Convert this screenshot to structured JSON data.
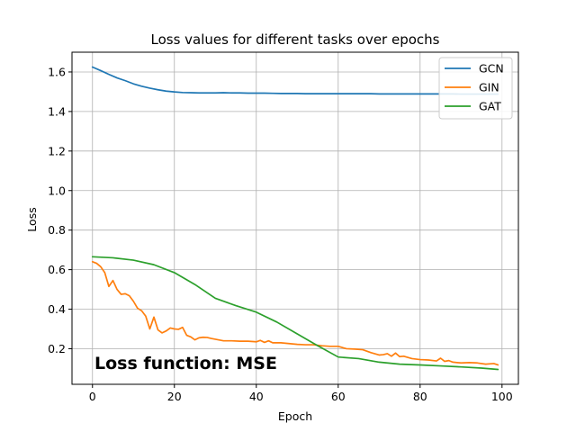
{
  "chart_data": {
    "type": "line",
    "title": "Loss values for different tasks over epochs",
    "xlabel": "Epoch",
    "ylabel": "Loss",
    "xlim": [
      -5,
      104
    ],
    "ylim": [
      0.02,
      1.7
    ],
    "xticks": [
      0,
      20,
      40,
      60,
      80,
      100
    ],
    "yticks": [
      0.2,
      0.4,
      0.6,
      0.8,
      1.0,
      1.2,
      1.4,
      1.6
    ],
    "xtick_labels": [
      "0",
      "20",
      "40",
      "60",
      "80",
      "100"
    ],
    "ytick_labels": [
      "0.2",
      "0.4",
      "0.6",
      "0.8",
      "1.0",
      "1.2",
      "1.4",
      "1.6"
    ],
    "grid": true,
    "legend_position": "top-right",
    "annotation": "Loss function: MSE",
    "series": [
      {
        "name": "GCN",
        "color": "#1f77b4",
        "x": [
          0,
          2,
          4,
          6,
          8,
          10,
          12,
          14,
          16,
          18,
          20,
          22,
          24,
          26,
          28,
          30,
          32,
          34,
          36,
          38,
          40,
          42,
          44,
          46,
          48,
          50,
          52,
          54,
          56,
          58,
          60,
          62,
          64,
          66,
          68,
          70,
          72,
          74,
          76,
          78,
          80,
          82,
          84,
          86,
          88,
          90,
          92,
          94,
          96,
          98,
          99
        ],
        "y": [
          1.625,
          1.607,
          1.588,
          1.57,
          1.556,
          1.54,
          1.528,
          1.518,
          1.51,
          1.503,
          1.499,
          1.496,
          1.495,
          1.494,
          1.494,
          1.494,
          1.495,
          1.494,
          1.494,
          1.493,
          1.493,
          1.493,
          1.492,
          1.491,
          1.491,
          1.491,
          1.49,
          1.49,
          1.49,
          1.49,
          1.49,
          1.49,
          1.49,
          1.49,
          1.49,
          1.489,
          1.489,
          1.489,
          1.489,
          1.489,
          1.489,
          1.489,
          1.489,
          1.489,
          1.489,
          1.488,
          1.488,
          1.488,
          1.488,
          1.488,
          1.488
        ]
      },
      {
        "name": "GIN",
        "color": "#ff7f0e",
        "x": [
          0,
          1,
          2,
          3,
          4,
          5,
          6,
          7,
          8,
          9,
          10,
          11,
          12,
          13,
          14,
          15,
          16,
          17,
          18,
          19,
          20,
          21,
          22,
          23,
          24,
          25,
          26,
          27,
          28,
          29,
          30,
          32,
          34,
          36,
          38,
          40,
          41,
          42,
          43,
          44,
          46,
          48,
          50,
          52,
          54,
          56,
          58,
          60,
          62,
          64,
          66,
          68,
          70,
          71,
          72,
          73,
          74,
          75,
          76,
          78,
          80,
          82,
          84,
          85,
          86,
          87,
          88,
          90,
          92,
          94,
          96,
          98,
          99
        ],
        "y": [
          0.64,
          0.632,
          0.615,
          0.585,
          0.515,
          0.545,
          0.5,
          0.475,
          0.478,
          0.468,
          0.44,
          0.405,
          0.392,
          0.365,
          0.3,
          0.36,
          0.295,
          0.28,
          0.29,
          0.305,
          0.3,
          0.298,
          0.308,
          0.268,
          0.26,
          0.245,
          0.255,
          0.258,
          0.257,
          0.252,
          0.248,
          0.24,
          0.24,
          0.238,
          0.238,
          0.235,
          0.242,
          0.232,
          0.24,
          0.23,
          0.23,
          0.226,
          0.222,
          0.22,
          0.22,
          0.215,
          0.212,
          0.212,
          0.2,
          0.198,
          0.195,
          0.18,
          0.168,
          0.17,
          0.175,
          0.162,
          0.178,
          0.16,
          0.162,
          0.15,
          0.145,
          0.143,
          0.138,
          0.152,
          0.136,
          0.14,
          0.132,
          0.128,
          0.13,
          0.128,
          0.122,
          0.125,
          0.118
        ]
      },
      {
        "name": "GAT",
        "color": "#2ca02c",
        "x": [
          0,
          5,
          10,
          15,
          20,
          25,
          30,
          35,
          40,
          45,
          50,
          55,
          60,
          65,
          70,
          75,
          80,
          85,
          90,
          95,
          99
        ],
        "y": [
          0.665,
          0.66,
          0.648,
          0.625,
          0.585,
          0.525,
          0.455,
          0.418,
          0.385,
          0.335,
          0.275,
          0.215,
          0.158,
          0.15,
          0.132,
          0.122,
          0.118,
          0.113,
          0.108,
          0.102,
          0.095
        ]
      }
    ]
  }
}
